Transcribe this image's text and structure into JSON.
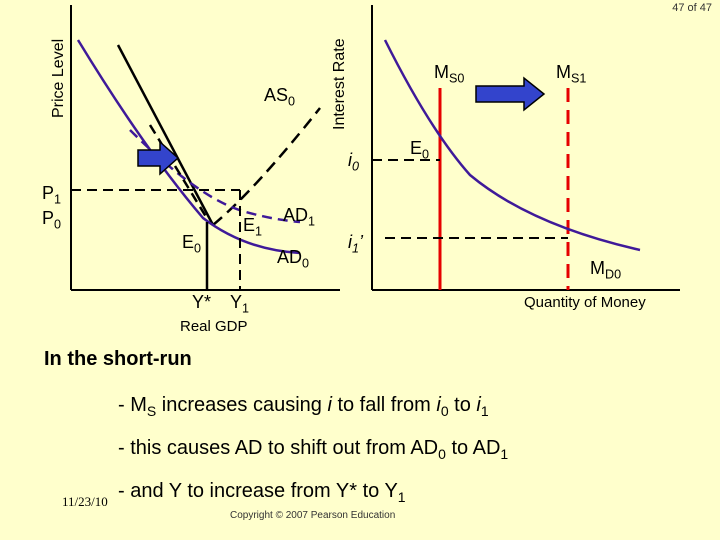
{
  "page_counter": "47 of 47",
  "left_graph": {
    "y_axis_label": "Price Level",
    "x_axis_label": "Real GDP",
    "as_label": "AS",
    "as_sub": "0",
    "ad1_label": "AD",
    "ad1_sub": "1",
    "ad0_label": "AD",
    "ad0_sub": "0",
    "p1_label": "P",
    "p1_sub": "1",
    "p0_label": "P",
    "p0_sub": "0",
    "e0_label": "E",
    "e0_sub": "0",
    "e1_label": "E",
    "e1_sub": "1",
    "ystar_label": "Y*",
    "y1_label": "Y",
    "y1_sub": "1"
  },
  "right_graph": {
    "y_axis_label": "Interest Rate",
    "x_axis_label": "Quantity of Money",
    "ms0_label": "M",
    "ms0_sub": "S0",
    "ms1_label": "M",
    "ms1_sub": "S1",
    "md0_label": "M",
    "md0_sub": "D0",
    "i0_label": "i",
    "i0_sub": "0",
    "i1_label": "i",
    "i1_sub": "1",
    "i1_prime": "’",
    "e0_label": "E",
    "e0_sub": "0"
  },
  "text": {
    "heading": "In the short-run",
    "b1_a": "- M",
    "b1_sub_s": "S",
    "b1_b": " increases causing ",
    "b1_i": "i",
    "b1_c": " to fall from ",
    "b1_i0": "i",
    "b1_i0_sub": "0",
    "b1_d": " to ",
    "b1_i1": "i",
    "b1_i1_sub": "1",
    "b2_a": "- this causes AD to shift out from AD",
    "b2_sub0": "0",
    "b2_b": " to AD",
    "b2_sub1": "1",
    "b3_a": "- and Y to increase from Y* to Y",
    "b3_sub1": "1"
  },
  "footer": {
    "date": "11/23/10",
    "copyright": "Copyright © 2007 Pearson Education"
  },
  "colors": {
    "axis": "#000000",
    "demand_curve": "#3f1a99",
    "ms_line": "#e60000",
    "arrow_fill": "#3344cc",
    "arrow_outline": "#000000",
    "guide": "#000000"
  }
}
